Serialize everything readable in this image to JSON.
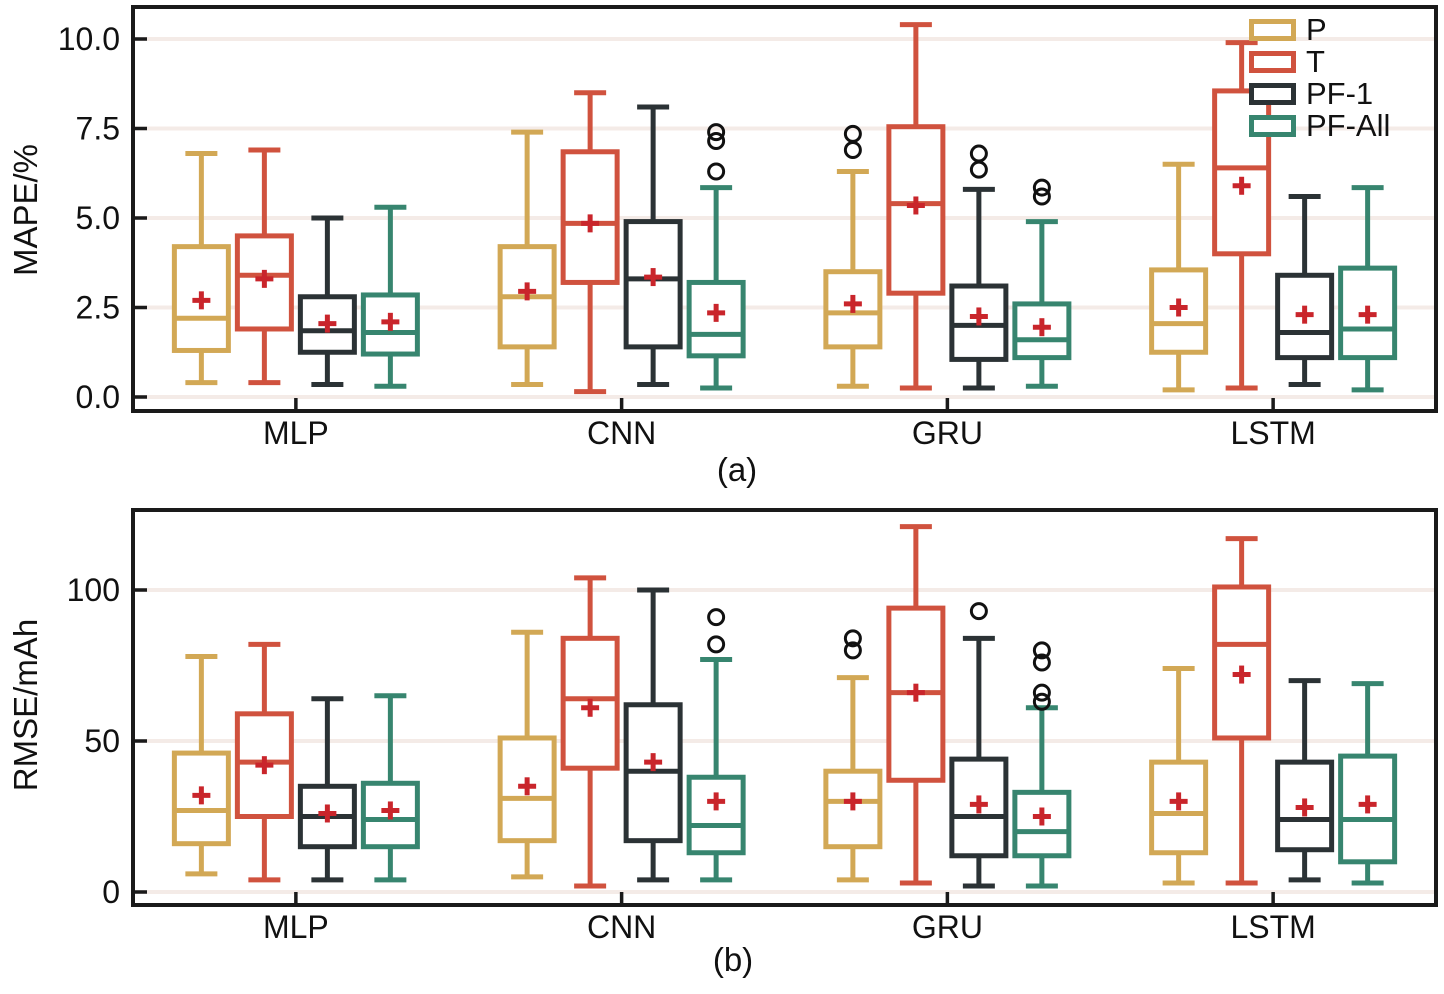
{
  "colors": {
    "axis": "#1a1a1a",
    "gridline": "#f4ebe7",
    "mean_marker": "#c9252b",
    "outlier": "#111111",
    "series": {
      "P": "#d2a855",
      "T": "#d0523e",
      "PF-1": "#2b3235",
      "PF-All": "#37856f"
    }
  },
  "chart_data": [
    {
      "id": "a",
      "type": "boxplot",
      "caption": "(a)",
      "ylabel": "MAPE/%",
      "xlabel": "",
      "categories": [
        "MLP",
        "CNN",
        "GRU",
        "LSTM"
      ],
      "yticks": [
        0.0,
        2.5,
        5.0,
        7.5,
        10.0
      ],
      "ytick_labels": [
        "0.0",
        "2.5",
        "5.0",
        "7.5",
        "10.0"
      ],
      "ylim": [
        -0.45,
        10.9
      ],
      "grid": "faint-horizontal",
      "legend": {
        "position": "top-right-inside",
        "entries": [
          "P",
          "T",
          "PF-1",
          "PF-All"
        ]
      },
      "series": [
        {
          "name": "P",
          "color": "#d2a855",
          "boxes": [
            {
              "whislo": 0.4,
              "q1": 1.3,
              "med": 2.2,
              "q3": 4.2,
              "whishi": 6.8,
              "mean": 2.7,
              "outliers": []
            },
            {
              "whislo": 0.35,
              "q1": 1.4,
              "med": 2.8,
              "q3": 4.2,
              "whishi": 7.4,
              "mean": 2.95,
              "outliers": []
            },
            {
              "whislo": 0.3,
              "q1": 1.4,
              "med": 2.35,
              "q3": 3.5,
              "whishi": 6.3,
              "mean": 2.6,
              "outliers": [
                6.9,
                7.35
              ]
            },
            {
              "whislo": 0.2,
              "q1": 1.25,
              "med": 2.05,
              "q3": 3.55,
              "whishi": 6.5,
              "mean": 2.5,
              "outliers": []
            }
          ]
        },
        {
          "name": "T",
          "color": "#d0523e",
          "boxes": [
            {
              "whislo": 0.4,
              "q1": 1.9,
              "med": 3.4,
              "q3": 4.5,
              "whishi": 6.9,
              "mean": 3.3,
              "outliers": []
            },
            {
              "whislo": 0.15,
              "q1": 3.2,
              "med": 4.85,
              "q3": 6.85,
              "whishi": 8.5,
              "mean": 4.85,
              "outliers": []
            },
            {
              "whislo": 0.25,
              "q1": 2.9,
              "med": 5.4,
              "q3": 7.55,
              "whishi": 10.4,
              "mean": 5.35,
              "outliers": []
            },
            {
              "whislo": 0.25,
              "q1": 4.0,
              "med": 6.4,
              "q3": 8.55,
              "whishi": 9.9,
              "mean": 5.9,
              "outliers": []
            }
          ]
        },
        {
          "name": "PF-1",
          "color": "#2b3235",
          "boxes": [
            {
              "whislo": 0.35,
              "q1": 1.25,
              "med": 1.85,
              "q3": 2.8,
              "whishi": 5.0,
              "mean": 2.05,
              "outliers": []
            },
            {
              "whislo": 0.35,
              "q1": 1.4,
              "med": 3.3,
              "q3": 4.9,
              "whishi": 8.1,
              "mean": 3.35,
              "outliers": []
            },
            {
              "whislo": 0.25,
              "q1": 1.05,
              "med": 2.0,
              "q3": 3.1,
              "whishi": 5.8,
              "mean": 2.25,
              "outliers": [
                6.35,
                6.8
              ]
            },
            {
              "whislo": 0.35,
              "q1": 1.1,
              "med": 1.8,
              "q3": 3.4,
              "whishi": 5.6,
              "mean": 2.3,
              "outliers": []
            }
          ]
        },
        {
          "name": "PF-All",
          "color": "#37856f",
          "boxes": [
            {
              "whislo": 0.3,
              "q1": 1.2,
              "med": 1.8,
              "q3": 2.85,
              "whishi": 5.3,
              "mean": 2.1,
              "outliers": []
            },
            {
              "whislo": 0.25,
              "q1": 1.15,
              "med": 1.75,
              "q3": 3.2,
              "whishi": 5.85,
              "mean": 2.35,
              "outliers": [
                6.3,
                7.15,
                7.4
              ]
            },
            {
              "whislo": 0.3,
              "q1": 1.1,
              "med": 1.6,
              "q3": 2.6,
              "whishi": 4.9,
              "mean": 1.95,
              "outliers": [
                5.6,
                5.85
              ]
            },
            {
              "whislo": 0.2,
              "q1": 1.1,
              "med": 1.9,
              "q3": 3.6,
              "whishi": 5.85,
              "mean": 2.3,
              "outliers": []
            }
          ]
        }
      ]
    },
    {
      "id": "b",
      "type": "boxplot",
      "caption": "(b)",
      "ylabel": "RMSE/mAh",
      "xlabel": "",
      "categories": [
        "MLP",
        "CNN",
        "GRU",
        "LSTM"
      ],
      "yticks": [
        0,
        50,
        100
      ],
      "ytick_labels": [
        "0",
        "50",
        "100"
      ],
      "ylim": [
        -4.5,
        127
      ],
      "grid": "faint-horizontal",
      "series": [
        {
          "name": "P",
          "color": "#d2a855",
          "boxes": [
            {
              "whislo": 6,
              "q1": 16,
              "med": 27,
              "q3": 46,
              "whishi": 78,
              "mean": 32,
              "outliers": []
            },
            {
              "whislo": 5,
              "q1": 17,
              "med": 31,
              "q3": 51,
              "whishi": 86,
              "mean": 35,
              "outliers": []
            },
            {
              "whislo": 4,
              "q1": 15,
              "med": 30,
              "q3": 40,
              "whishi": 71,
              "mean": 30,
              "outliers": [
                80,
                84
              ]
            },
            {
              "whislo": 3,
              "q1": 13,
              "med": 26,
              "q3": 43,
              "whishi": 74,
              "mean": 30,
              "outliers": []
            }
          ]
        },
        {
          "name": "T",
          "color": "#d0523e",
          "boxes": [
            {
              "whislo": 4,
              "q1": 25,
              "med": 43,
              "q3": 59,
              "whishi": 82,
              "mean": 42,
              "outliers": []
            },
            {
              "whislo": 2,
              "q1": 41,
              "med": 64,
              "q3": 84,
              "whishi": 104,
              "mean": 61,
              "outliers": []
            },
            {
              "whislo": 3,
              "q1": 37,
              "med": 66,
              "q3": 94,
              "whishi": 121,
              "mean": 66,
              "outliers": []
            },
            {
              "whislo": 3,
              "q1": 51,
              "med": 82,
              "q3": 101,
              "whishi": 117,
              "mean": 72,
              "outliers": []
            }
          ]
        },
        {
          "name": "PF-1",
          "color": "#2b3235",
          "boxes": [
            {
              "whislo": 4,
              "q1": 15,
              "med": 25,
              "q3": 35,
              "whishi": 64,
              "mean": 26,
              "outliers": []
            },
            {
              "whislo": 4,
              "q1": 17,
              "med": 40,
              "q3": 62,
              "whishi": 100,
              "mean": 43,
              "outliers": []
            },
            {
              "whislo": 2,
              "q1": 12,
              "med": 25,
              "q3": 44,
              "whishi": 84,
              "mean": 29,
              "outliers": [
                93
              ]
            },
            {
              "whislo": 4,
              "q1": 14,
              "med": 24,
              "q3": 43,
              "whishi": 70,
              "mean": 28,
              "outliers": []
            }
          ]
        },
        {
          "name": "PF-All",
          "color": "#37856f",
          "boxes": [
            {
              "whislo": 4,
              "q1": 15,
              "med": 24,
              "q3": 36,
              "whishi": 65,
              "mean": 27,
              "outliers": []
            },
            {
              "whislo": 4,
              "q1": 13,
              "med": 22,
              "q3": 38,
              "whishi": 77,
              "mean": 30,
              "outliers": [
                82,
                91
              ]
            },
            {
              "whislo": 2,
              "q1": 12,
              "med": 20,
              "q3": 33,
              "whishi": 61,
              "mean": 25,
              "outliers": [
                63,
                66,
                76,
                80
              ]
            },
            {
              "whislo": 3,
              "q1": 10,
              "med": 24,
              "q3": 45,
              "whishi": 69,
              "mean": 29,
              "outliers": []
            }
          ]
        }
      ]
    }
  ]
}
